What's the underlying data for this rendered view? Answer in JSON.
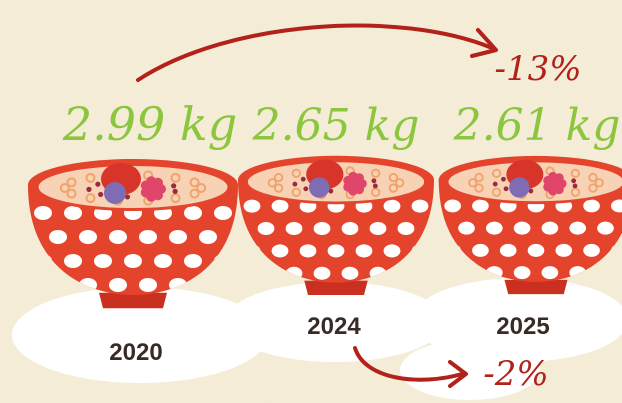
{
  "chart_data": {
    "type": "bar",
    "title": "",
    "categories": [
      "2020",
      "2024",
      "2025"
    ],
    "values": [
      2.99,
      2.65,
      2.61
    ],
    "value_labels": [
      "2.99 kg",
      "2.65 kg",
      "2.61 kg"
    ],
    "unit": "kg",
    "annotations": [
      {
        "from": "2020",
        "to": "2025",
        "label": "-13%"
      },
      {
        "from": "2024",
        "to": "2025",
        "label": "-2%"
      }
    ]
  },
  "colors": {
    "bowl": "#e5442c",
    "dots": "#ffffff",
    "value_text": "#8cc63f",
    "year_text": "#3a2a25",
    "arrow": "#b3211b",
    "background": "#f6eed7"
  }
}
